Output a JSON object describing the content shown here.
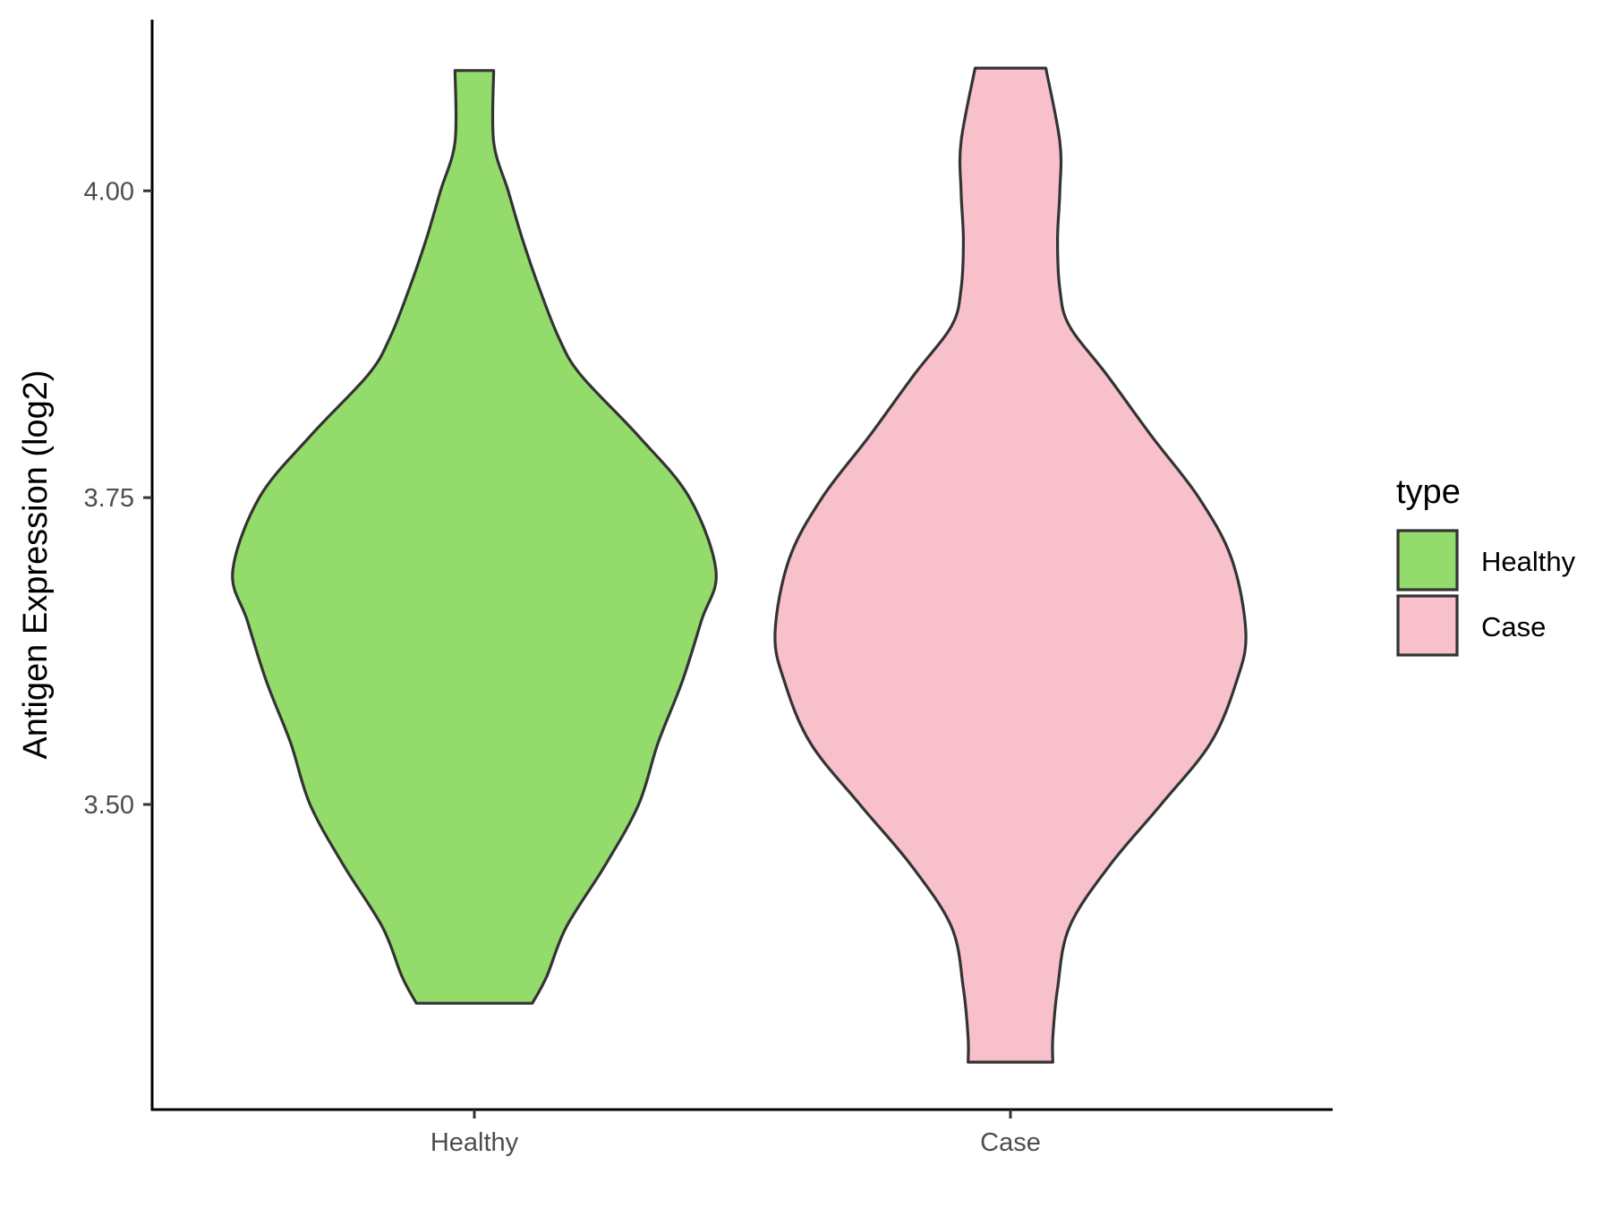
{
  "chart_data": {
    "type": "violin",
    "ylabel": "Antigen Expression (log2)",
    "xlabel": "",
    "categories": [
      "Healthy",
      "Case"
    ],
    "yticks": [
      3.5,
      3.75,
      4.0
    ],
    "ytick_labels": [
      "3.50",
      "3.75",
      "4.00"
    ],
    "ylim": [
      3.26,
      4.15
    ],
    "grid": false,
    "legend": {
      "title": "type",
      "position": "right",
      "entries": [
        {
          "label": "Healthy",
          "color": "#93dc6b"
        },
        {
          "label": "Case",
          "color": "#f7c0cb"
        }
      ]
    },
    "series": [
      {
        "name": "Healthy",
        "color": "#93dc6b",
        "min": 3.338,
        "max": 4.098,
        "density_y": [
          3.338,
          3.36,
          3.4,
          3.45,
          3.5,
          3.55,
          3.6,
          3.65,
          3.69,
          3.75,
          3.8,
          3.85,
          3.88,
          3.92,
          3.96,
          4.0,
          4.04,
          4.098
        ],
        "density_w": [
          0.24,
          0.3,
          0.38,
          0.54,
          0.68,
          0.76,
          0.86,
          0.94,
          1.0,
          0.89,
          0.68,
          0.44,
          0.35,
          0.27,
          0.2,
          0.14,
          0.08,
          0.08
        ]
      },
      {
        "name": "Case",
        "color": "#f7c0cb",
        "min": 3.29,
        "max": 4.1,
        "density_y": [
          3.29,
          3.31,
          3.35,
          3.4,
          3.45,
          3.5,
          3.55,
          3.6,
          3.64,
          3.7,
          3.75,
          3.8,
          3.85,
          3.89,
          3.92,
          3.96,
          4.0,
          4.04,
          4.1
        ],
        "density_w": [
          0.18,
          0.18,
          0.2,
          0.25,
          0.42,
          0.64,
          0.85,
          0.96,
          1.0,
          0.94,
          0.8,
          0.6,
          0.41,
          0.25,
          0.21,
          0.2,
          0.21,
          0.21,
          0.15
        ]
      }
    ]
  }
}
